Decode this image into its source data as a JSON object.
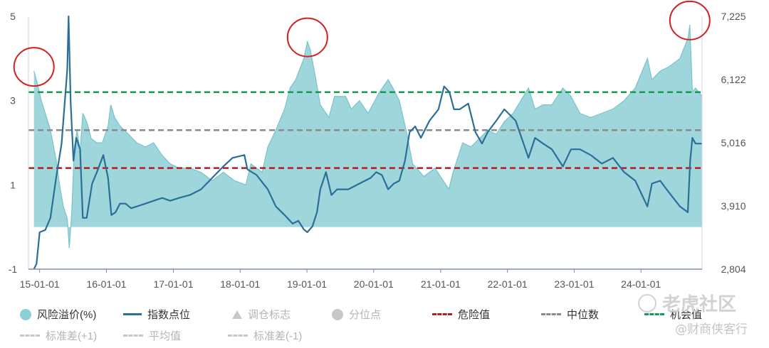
{
  "chart_data": {
    "type": "area",
    "x_ticks": [
      "15-01-01",
      "16-01-01",
      "17-01-01",
      "18-01-01",
      "19-01-01",
      "20-01-01",
      "21-01-01",
      "22-01-01",
      "23-01-01",
      "24-01-01"
    ],
    "x_range": [
      "2014-11-01",
      "2024-11-30"
    ],
    "y_left": {
      "ticks": [
        "5",
        "3",
        "1",
        "-1"
      ],
      "range": [
        -1,
        5
      ]
    },
    "y_right": {
      "ticks": [
        "7,225",
        "6,122",
        "5,016",
        "3,910",
        "2,804"
      ],
      "range": [
        2804,
        7225
      ]
    },
    "series": [
      {
        "name": "风险溢价(%)",
        "axis": "left",
        "color": "#8ecfd6",
        "points": [
          [
            "2014-12-01",
            3.7
          ],
          [
            "2014-12-20",
            3.4
          ],
          [
            "2015-01-10",
            3.0
          ],
          [
            "2015-02-01",
            2.7
          ],
          [
            "2015-03-01",
            2.3
          ],
          [
            "2015-04-01",
            1.6
          ],
          [
            "2015-04-20",
            1.0
          ],
          [
            "2015-05-10",
            0.5
          ],
          [
            "2015-06-01",
            0.2
          ],
          [
            "2015-06-12",
            -0.5
          ],
          [
            "2015-06-25",
            0.3
          ],
          [
            "2015-07-10",
            1.9
          ],
          [
            "2015-07-25",
            2.3
          ],
          [
            "2015-08-10",
            1.8
          ],
          [
            "2015-08-25",
            2.7
          ],
          [
            "2015-09-15",
            2.5
          ],
          [
            "2015-10-10",
            2.1
          ],
          [
            "2015-11-10",
            2.0
          ],
          [
            "2015-12-10",
            2.0
          ],
          [
            "2016-01-10",
            2.4
          ],
          [
            "2016-01-25",
            2.9
          ],
          [
            "2016-02-15",
            2.6
          ],
          [
            "2016-03-15",
            2.4
          ],
          [
            "2016-05-01",
            2.2
          ],
          [
            "2016-06-15",
            2.0
          ],
          [
            "2016-08-01",
            1.9
          ],
          [
            "2016-09-15",
            2.0
          ],
          [
            "2016-11-01",
            1.7
          ],
          [
            "2016-12-15",
            1.5
          ],
          [
            "2017-02-01",
            1.4
          ],
          [
            "2017-04-01",
            1.4
          ],
          [
            "2017-06-01",
            1.3
          ],
          [
            "2017-08-01",
            1.1
          ],
          [
            "2017-10-01",
            1.3
          ],
          [
            "2017-12-01",
            1.1
          ],
          [
            "2018-02-01",
            1.0
          ],
          [
            "2018-03-01",
            1.5
          ],
          [
            "2018-05-01",
            1.3
          ],
          [
            "2018-06-01",
            1.9
          ],
          [
            "2018-07-15",
            2.3
          ],
          [
            "2018-09-01",
            2.8
          ],
          [
            "2018-10-01",
            3.3
          ],
          [
            "2018-11-01",
            3.5
          ],
          [
            "2018-12-15",
            4.0
          ],
          [
            "2019-01-04",
            4.4
          ],
          [
            "2019-01-20",
            4.2
          ],
          [
            "2019-02-15",
            3.6
          ],
          [
            "2019-03-15",
            2.9
          ],
          [
            "2019-05-01",
            2.6
          ],
          [
            "2019-06-01",
            3.1
          ],
          [
            "2019-08-01",
            3.1
          ],
          [
            "2019-09-01",
            2.8
          ],
          [
            "2019-10-15",
            3.0
          ],
          [
            "2019-12-01",
            2.7
          ],
          [
            "2020-02-01",
            3.2
          ],
          [
            "2020-03-20",
            3.5
          ],
          [
            "2020-04-15",
            3.3
          ],
          [
            "2020-05-20",
            3.0
          ],
          [
            "2020-07-01",
            2.2
          ],
          [
            "2020-08-01",
            1.5
          ],
          [
            "2020-10-01",
            1.2
          ],
          [
            "2020-12-01",
            1.4
          ],
          [
            "2021-01-15",
            1.1
          ],
          [
            "2021-02-15",
            0.9
          ],
          [
            "2021-03-10",
            1.3
          ],
          [
            "2021-05-01",
            2.0
          ],
          [
            "2021-06-15",
            1.9
          ],
          [
            "2021-08-01",
            2.1
          ],
          [
            "2021-09-15",
            2.3
          ],
          [
            "2021-11-01",
            2.2
          ],
          [
            "2021-12-15",
            2.5
          ],
          [
            "2022-02-01",
            2.7
          ],
          [
            "2022-03-15",
            3.0
          ],
          [
            "2022-04-26",
            3.3
          ],
          [
            "2022-06-01",
            2.8
          ],
          [
            "2022-07-15",
            2.9
          ],
          [
            "2022-09-01",
            2.9
          ],
          [
            "2022-10-31",
            3.3
          ],
          [
            "2022-12-15",
            3.1
          ],
          [
            "2023-02-01",
            2.7
          ],
          [
            "2023-04-01",
            2.6
          ],
          [
            "2023-06-01",
            2.7
          ],
          [
            "2023-08-01",
            2.8
          ],
          [
            "2023-10-01",
            3.0
          ],
          [
            "2023-12-01",
            3.3
          ],
          [
            "2024-02-05",
            4.0
          ],
          [
            "2024-03-01",
            3.5
          ],
          [
            "2024-04-15",
            3.7
          ],
          [
            "2024-06-01",
            3.8
          ],
          [
            "2024-08-01",
            4.0
          ],
          [
            "2024-09-15",
            4.5
          ],
          [
            "2024-09-24",
            4.8
          ],
          [
            "2024-10-08",
            3.2
          ],
          [
            "2024-10-25",
            3.3
          ],
          [
            "2024-11-30",
            3.1
          ]
        ]
      },
      {
        "name": "指数点位",
        "axis": "right",
        "color": "#2a6f97",
        "points": [
          [
            "2014-12-01",
            2804
          ],
          [
            "2014-12-15",
            2900
          ],
          [
            "2015-01-01",
            3450
          ],
          [
            "2015-02-01",
            3490
          ],
          [
            "2015-03-01",
            3700
          ],
          [
            "2015-04-01",
            4400
          ],
          [
            "2015-05-01",
            5000
          ],
          [
            "2015-06-01",
            6300
          ],
          [
            "2015-06-08",
            7225
          ],
          [
            "2015-06-20",
            5700
          ],
          [
            "2015-07-05",
            4700
          ],
          [
            "2015-07-20",
            5100
          ],
          [
            "2015-08-10",
            4900
          ],
          [
            "2015-08-25",
            3700
          ],
          [
            "2015-09-15",
            3700
          ],
          [
            "2015-10-15",
            4300
          ],
          [
            "2015-11-10",
            4500
          ],
          [
            "2015-12-15",
            4800
          ],
          [
            "2016-01-10",
            4400
          ],
          [
            "2016-01-28",
            3750
          ],
          [
            "2016-02-20",
            3800
          ],
          [
            "2016-03-15",
            3950
          ],
          [
            "2016-04-15",
            3950
          ],
          [
            "2016-05-15",
            3870
          ],
          [
            "2016-06-15",
            3900
          ],
          [
            "2016-08-01",
            3950
          ],
          [
            "2016-09-15",
            4000
          ],
          [
            "2016-11-01",
            4050
          ],
          [
            "2016-12-15",
            4000
          ],
          [
            "2017-02-01",
            4050
          ],
          [
            "2017-04-01",
            4100
          ],
          [
            "2017-06-01",
            4200
          ],
          [
            "2017-08-01",
            4400
          ],
          [
            "2017-10-01",
            4600
          ],
          [
            "2017-11-20",
            4750
          ],
          [
            "2018-01-24",
            4800
          ],
          [
            "2018-02-10",
            4550
          ],
          [
            "2018-04-01",
            4450
          ],
          [
            "2018-06-01",
            4200
          ],
          [
            "2018-07-15",
            3900
          ],
          [
            "2018-09-01",
            3750
          ],
          [
            "2018-10-15",
            3600
          ],
          [
            "2018-11-15",
            3650
          ],
          [
            "2018-12-15",
            3500
          ],
          [
            "2019-01-03",
            3450
          ],
          [
            "2019-01-31",
            3550
          ],
          [
            "2019-02-25",
            3800
          ],
          [
            "2019-03-15",
            4200
          ],
          [
            "2019-04-15",
            4500
          ],
          [
            "2019-05-15",
            4100
          ],
          [
            "2019-06-15",
            4200
          ],
          [
            "2019-08-15",
            4200
          ],
          [
            "2019-10-15",
            4300
          ],
          [
            "2019-12-15",
            4400
          ],
          [
            "2020-01-15",
            4500
          ],
          [
            "2020-02-15",
            4450
          ],
          [
            "2020-03-20",
            4200
          ],
          [
            "2020-04-20",
            4300
          ],
          [
            "2020-05-20",
            4350
          ],
          [
            "2020-06-20",
            4700
          ],
          [
            "2020-07-15",
            5200
          ],
          [
            "2020-08-15",
            5300
          ],
          [
            "2020-09-15",
            5100
          ],
          [
            "2020-11-01",
            5400
          ],
          [
            "2020-12-20",
            5600
          ],
          [
            "2021-01-20",
            6000
          ],
          [
            "2021-02-18",
            5900
          ],
          [
            "2021-03-15",
            5600
          ],
          [
            "2021-04-15",
            5600
          ],
          [
            "2021-06-01",
            5700
          ],
          [
            "2021-07-10",
            5200
          ],
          [
            "2021-08-15",
            5000
          ],
          [
            "2021-09-15",
            5200
          ],
          [
            "2021-11-01",
            5400
          ],
          [
            "2021-12-15",
            5600
          ],
          [
            "2022-02-15",
            5400
          ],
          [
            "2022-04-26",
            4750
          ],
          [
            "2022-06-01",
            5100
          ],
          [
            "2022-07-15",
            5000
          ],
          [
            "2022-09-01",
            4900
          ],
          [
            "2022-10-31",
            4600
          ],
          [
            "2022-12-15",
            4900
          ],
          [
            "2023-02-01",
            4900
          ],
          [
            "2023-04-01",
            4800
          ],
          [
            "2023-06-01",
            4650
          ],
          [
            "2023-08-01",
            4750
          ],
          [
            "2023-10-01",
            4500
          ],
          [
            "2023-12-01",
            4350
          ],
          [
            "2024-02-05",
            3900
          ],
          [
            "2024-03-01",
            4300
          ],
          [
            "2024-04-15",
            4350
          ],
          [
            "2024-06-01",
            4150
          ],
          [
            "2024-08-01",
            3900
          ],
          [
            "2024-09-13",
            3800
          ],
          [
            "2024-09-26",
            4700
          ],
          [
            "2024-10-08",
            5100
          ],
          [
            "2024-10-25",
            5000
          ],
          [
            "2024-11-30",
            5000
          ]
        ]
      }
    ],
    "reference_lines": [
      {
        "name": "危险值",
        "axis": "left",
        "value": 1.4,
        "color": "#b51d1d"
      },
      {
        "name": "中位数",
        "axis": "left",
        "value": 2.3,
        "color": "#8a8a8a"
      },
      {
        "name": "机会值",
        "axis": "left",
        "value": 3.2,
        "color": "#169a56"
      }
    ],
    "highlight_circles": [
      "2014-12-01",
      "2019-01-04",
      "2024-09-24"
    ],
    "legend": [
      {
        "label": "风险溢价(%)",
        "symbol": "circle",
        "color": "#8ecfd6",
        "active": true
      },
      {
        "label": "指数点位",
        "symbol": "line",
        "color": "#2a6f97",
        "active": true
      },
      {
        "label": "调仓标志",
        "symbol": "triangle",
        "color": "#c8c8c8",
        "active": false
      },
      {
        "label": "分位点",
        "symbol": "circle",
        "color": "#c8c8c8",
        "active": false
      },
      {
        "label": "危险值",
        "symbol": "dash",
        "color": "#b51d1d",
        "active": true
      },
      {
        "label": "中位数",
        "symbol": "dash",
        "color": "#8a8a8a",
        "active": true
      },
      {
        "label": "机会值",
        "symbol": "dash",
        "color": "#169a56",
        "active": true
      },
      {
        "label": "标准差(+1)",
        "symbol": "dash",
        "color": "#c8c8c8",
        "active": false
      },
      {
        "label": "平均值",
        "symbol": "dash",
        "color": "#c8c8c8",
        "active": false
      },
      {
        "label": "标准差(-1)",
        "symbol": "dash",
        "color": "#c8c8c8",
        "active": false
      }
    ],
    "grid": false
  },
  "watermark": {
    "line1": "老虎社区",
    "line2": "@财商侠客行"
  }
}
